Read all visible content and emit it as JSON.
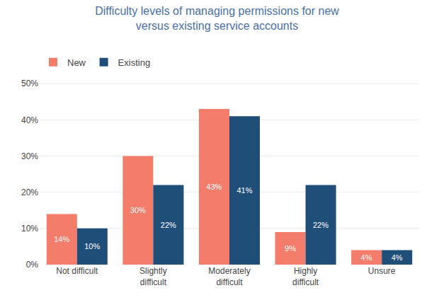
{
  "chart_data": {
    "type": "bar",
    "title": "Difficulty levels of managing permissions for new\nversus existing service accounts",
    "categories": [
      "Not difficult",
      "Slightly\ndifficult",
      "Moderately\ndifficult",
      "Highly\ndifficult",
      "Unsure"
    ],
    "series": [
      {
        "name": "New",
        "color": "#F47C6A",
        "values": [
          14,
          30,
          43,
          9,
          4
        ],
        "value_labels": [
          "14%",
          "30%",
          "43%",
          "9%",
          "4%"
        ]
      },
      {
        "name": "Existing",
        "color": "#1F4E79",
        "values": [
          10,
          22,
          41,
          22,
          4
        ],
        "value_labels": [
          "10%",
          "22%",
          "41%",
          "22%",
          "4%"
        ]
      }
    ],
    "ylim": [
      0,
      52
    ],
    "yticks": [
      {
        "value": 0,
        "label": "0%"
      },
      {
        "value": 10,
        "label": "10%"
      },
      {
        "value": 20,
        "label": "20%"
      },
      {
        "value": 30,
        "label": "30%"
      },
      {
        "value": 40,
        "label": "40%"
      },
      {
        "value": 50,
        "label": "50%"
      }
    ],
    "grid": true,
    "legend": "upper left",
    "data_labels": true
  }
}
